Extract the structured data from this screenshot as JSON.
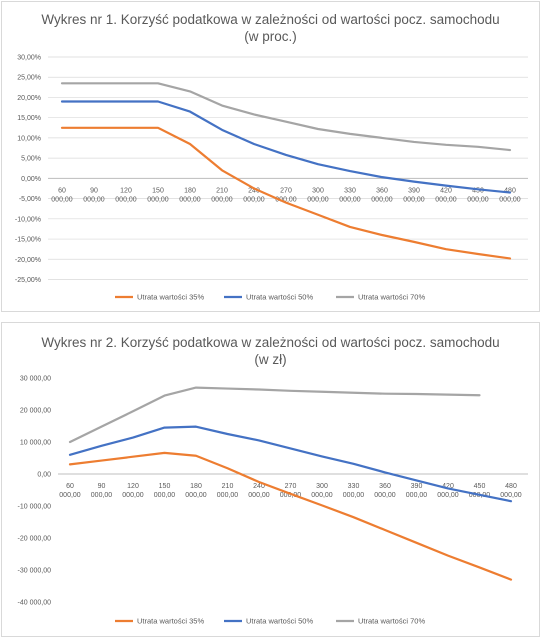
{
  "chart_data": [
    {
      "type": "line",
      "title": "Wykres nr 1. Korzyść podatkowa w zależności od wartości pocz. samochodu",
      "subtitle": "(w proc.)",
      "categories": [
        [
          "60",
          "000,00"
        ],
        [
          "90",
          "000,00"
        ],
        [
          "120",
          "000,00"
        ],
        [
          "150",
          "000,00"
        ],
        [
          "180",
          "000,00"
        ],
        [
          "210",
          "000,00"
        ],
        [
          "240",
          "000,00"
        ],
        [
          "270",
          "000,00"
        ],
        [
          "300",
          "000,00"
        ],
        [
          "330",
          "000,00"
        ],
        [
          "360",
          "000,00"
        ],
        [
          "390",
          "000,00"
        ],
        [
          "420",
          "000,00"
        ],
        [
          "450",
          "000,00"
        ],
        [
          "480",
          "000,00"
        ]
      ],
      "ylim": [
        -25,
        30
      ],
      "yticks": [
        30,
        25,
        20,
        15,
        10,
        5,
        0,
        -5,
        -10,
        -15,
        -20,
        -25
      ],
      "ytick_labels": [
        "30,00%",
        "25,00%",
        "20,00%",
        "15,00%",
        "10,00%",
        "5,00%",
        "0,00%",
        "-5,00%",
        "-10,00%",
        "-15,00%",
        "-20,00%",
        "-25,00%"
      ],
      "grid": true,
      "legend": "bottom",
      "series": [
        {
          "name": "Utrata wartości 35%",
          "color": "#ed7d31",
          "values": [
            12.5,
            12.5,
            12.5,
            12.5,
            8.5,
            2,
            -2.5,
            -6,
            -9,
            -12,
            -14,
            -15.7,
            -17.5,
            -18.7,
            -19.8
          ]
        },
        {
          "name": "Utrata wartości 50%",
          "color": "#4472c4",
          "values": [
            19,
            19,
            19,
            19,
            16.5,
            12,
            8.5,
            5.8,
            3.5,
            1.8,
            0.3,
            -0.8,
            -1.8,
            -2.7,
            -3.5
          ]
        },
        {
          "name": "Utrata wartości 70%",
          "color": "#a5a5a5",
          "values": [
            23.5,
            23.5,
            23.5,
            23.5,
            21.5,
            18,
            15.8,
            14,
            12.2,
            11,
            10,
            9,
            8.3,
            7.8,
            7
          ]
        }
      ]
    },
    {
      "type": "line",
      "title": "Wykres nr 2. Korzyść podatkowa w zależności od wartości pocz. samochodu",
      "subtitle": "(w zł)",
      "categories": [
        [
          "60",
          "000,00"
        ],
        [
          "90",
          "000,00"
        ],
        [
          "120",
          "000,00"
        ],
        [
          "150",
          "000,00"
        ],
        [
          "180",
          "000,00"
        ],
        [
          "210",
          "000,00"
        ],
        [
          "240",
          "000,00"
        ],
        [
          "270",
          "000,00"
        ],
        [
          "300",
          "000,00"
        ],
        [
          "330",
          "000,00"
        ],
        [
          "360",
          "000,00"
        ],
        [
          "390",
          "000,00"
        ],
        [
          "420",
          "000,00"
        ],
        [
          "450",
          "000,00"
        ],
        [
          "480",
          "000,00"
        ]
      ],
      "ylim": [
        -40000,
        30000
      ],
      "yticks": [
        30000,
        20000,
        10000,
        0,
        -10000,
        -20000,
        -30000,
        -40000
      ],
      "ytick_labels": [
        "30 000,00",
        "20 000,00",
        "10 000,00",
        "0,00",
        "-10 000,00",
        "-20 000,00",
        "-30 000,00",
        "-40 000,00"
      ],
      "grid": false,
      "legend": "bottom",
      "series": [
        {
          "name": "Utrata wartości 35%",
          "color": "#ed7d31",
          "values": [
            3000,
            4200,
            5400,
            6600,
            5700,
            1800,
            -2500,
            -6200,
            -9800,
            -13500,
            -17500,
            -21500,
            -25500,
            -29200,
            -33000
          ]
        },
        {
          "name": "Utrata wartości 50%",
          "color": "#4472c4",
          "values": [
            6000,
            8800,
            11400,
            14500,
            14800,
            12500,
            10500,
            8000,
            5500,
            3200,
            500,
            -2000,
            -4500,
            -6500,
            -8500
          ]
        },
        {
          "name": "Utrata wartości 70%",
          "color": "#a5a5a5",
          "values": [
            10000,
            14800,
            19600,
            24500,
            27000,
            26700,
            26400,
            26000,
            25700,
            25400,
            25100,
            25000,
            24800,
            24600,
            null
          ]
        }
      ]
    }
  ]
}
